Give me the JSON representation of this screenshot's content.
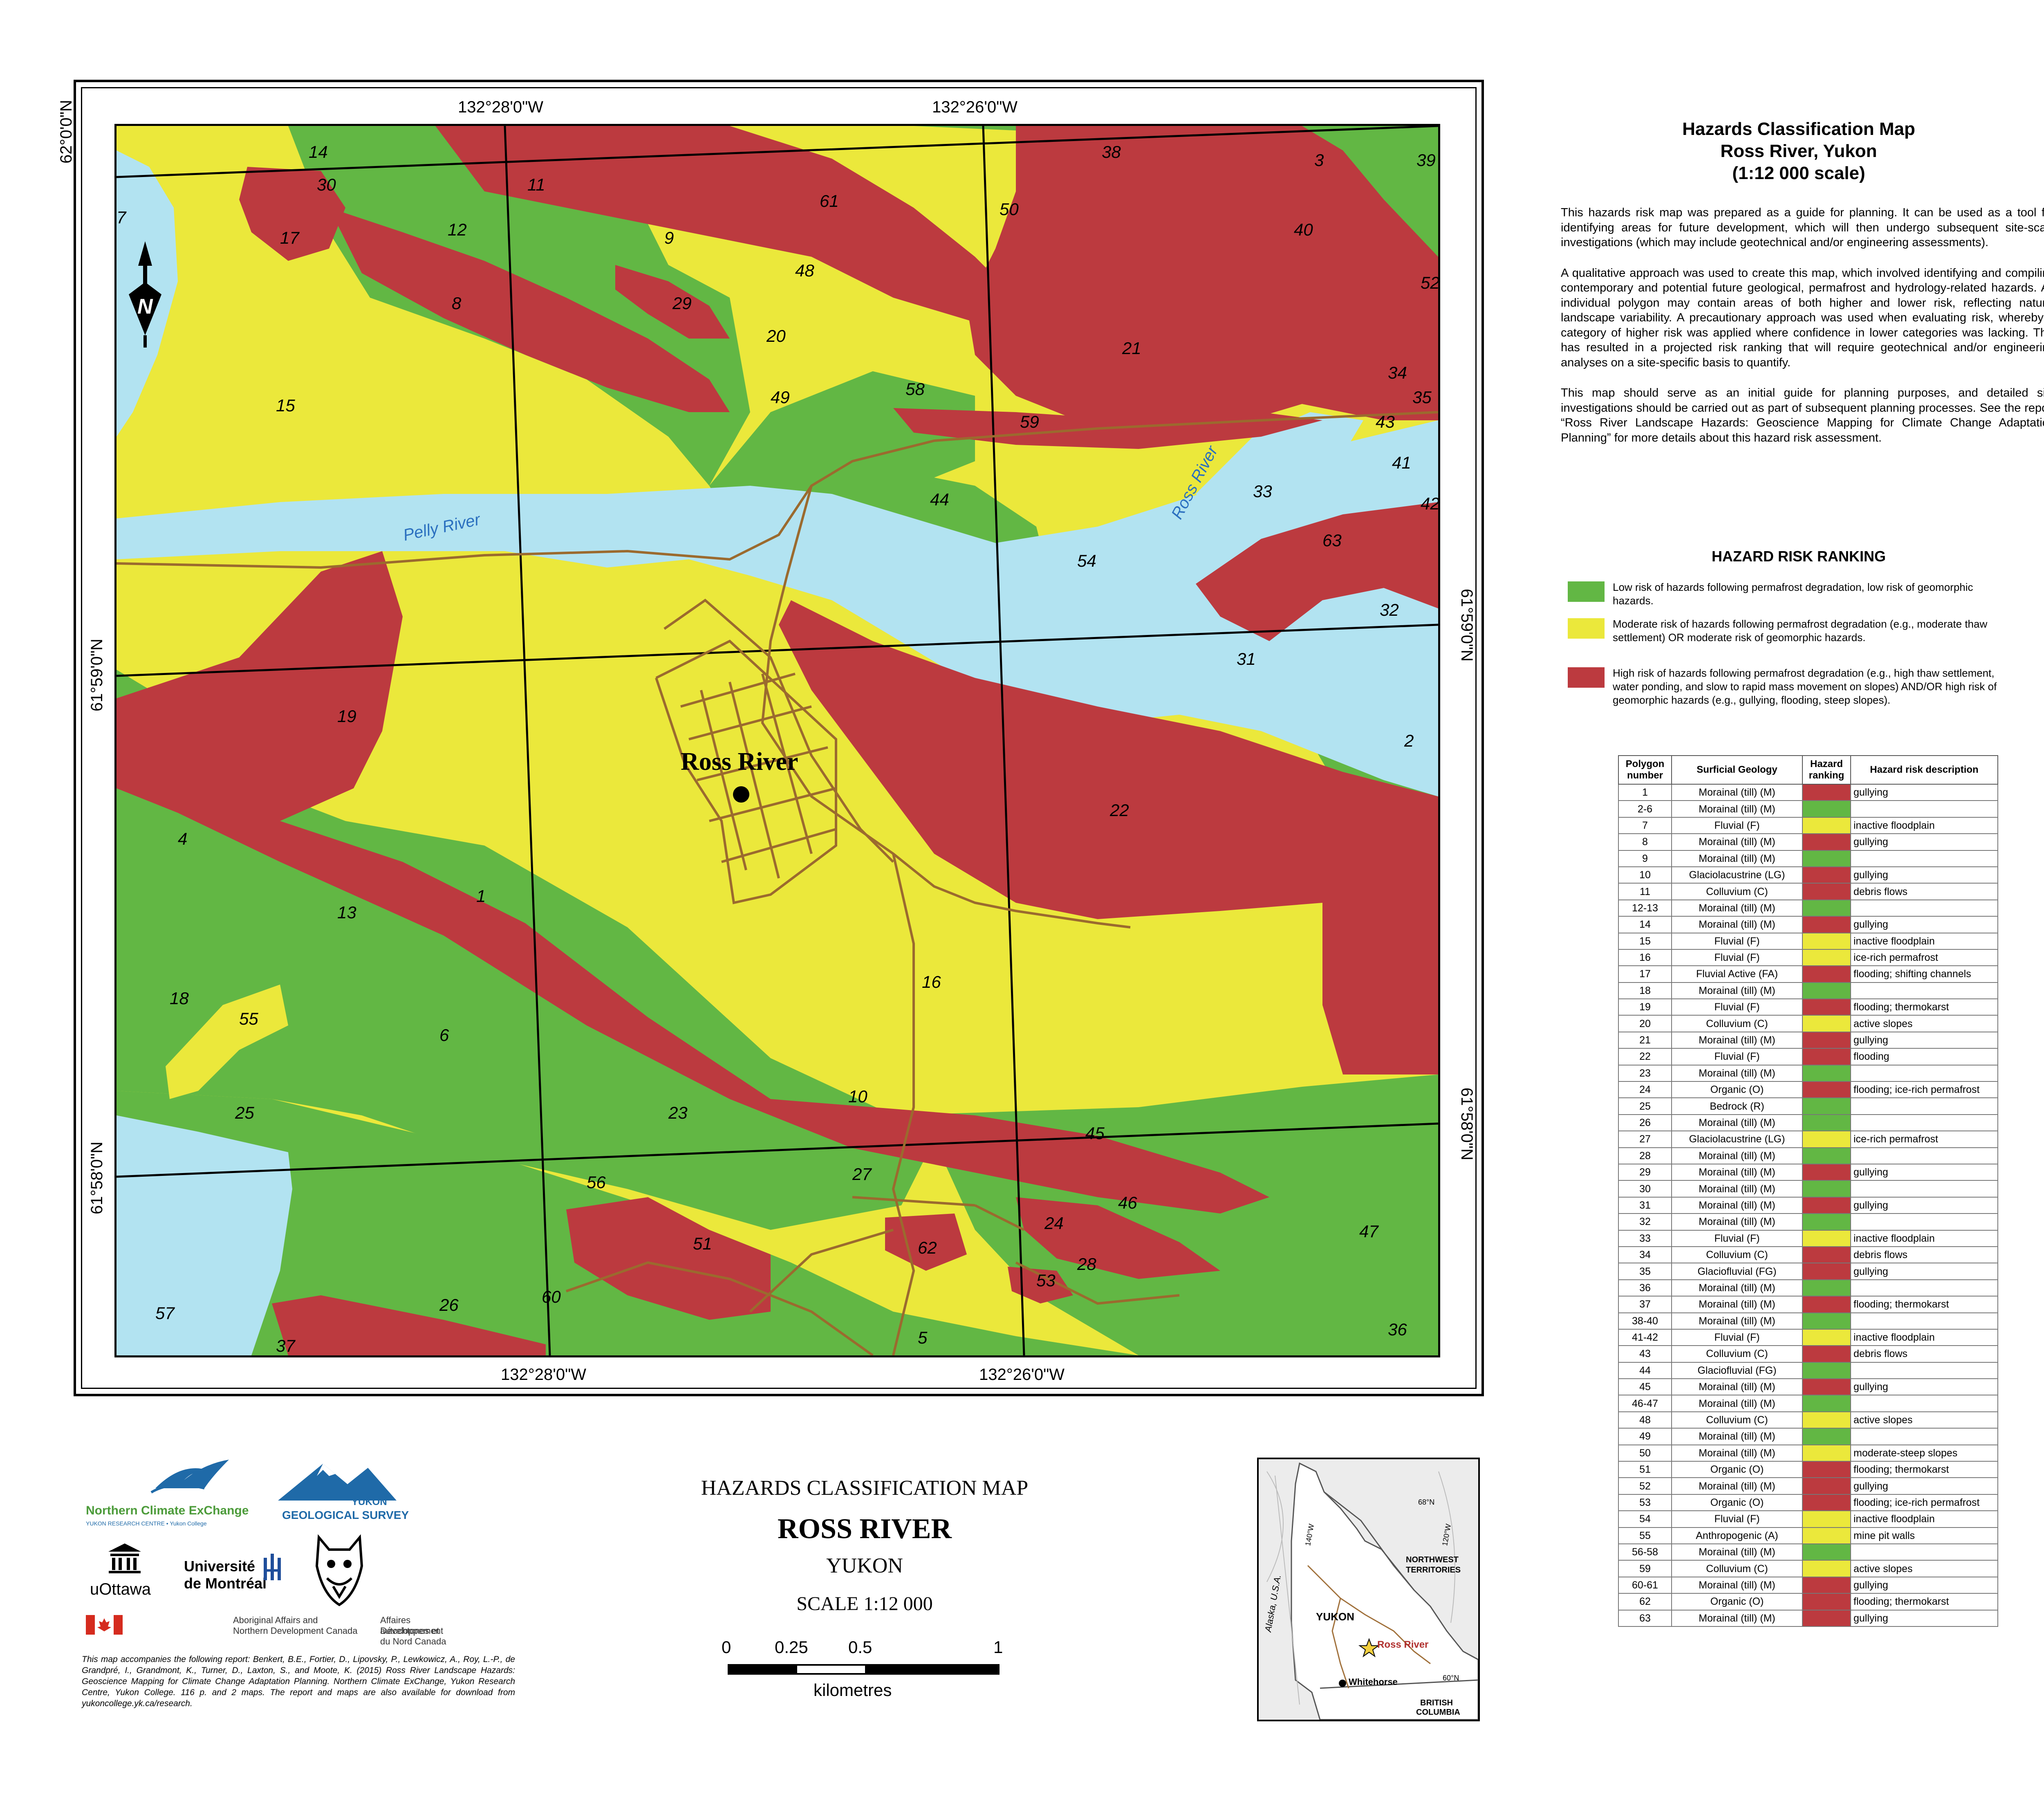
{
  "map": {
    "coords_top": [
      "132°28'0\"W",
      "132°26'0\"W"
    ],
    "coords_bottom": [
      "132°28'0\"W",
      "132°26'0\"W"
    ],
    "coords_left": [
      "62°0'0\"N",
      "61°59'0\"N",
      "61°58'0\"N"
    ],
    "coords_right": [
      "61°59'0\"N",
      "61°58'0\"N"
    ],
    "town_label": "Ross River",
    "rivers": [
      "Pelly River",
      "Ross River"
    ],
    "north_letter": "N",
    "polygon_labels": [
      "14",
      "30",
      "11",
      "38",
      "3",
      "39",
      "7",
      "17",
      "12",
      "9",
      "61",
      "50",
      "40",
      "8",
      "29",
      "48",
      "52",
      "20",
      "21",
      "34",
      "15",
      "49",
      "58",
      "35",
      "59",
      "43",
      "41",
      "33",
      "44",
      "42",
      "63",
      "54",
      "32",
      "31",
      "19",
      "2",
      "22",
      "4",
      "1",
      "13",
      "16",
      "18",
      "55",
      "6",
      "10",
      "25",
      "23",
      "45",
      "56",
      "27",
      "46",
      "51",
      "62",
      "24",
      "47",
      "28",
      "53",
      "60",
      "26",
      "57",
      "37",
      "5",
      "36"
    ],
    "colors": {
      "low": "#62b744",
      "moderate": "#ebe83b",
      "high": "#bc3a3f",
      "water": "#b2e3f1",
      "road": "#9b6a2e"
    }
  },
  "panel": {
    "title_line1": "Hazards Classification Map",
    "title_line2": "Ross River, Yukon",
    "title_line3": "(1:12 000 scale)",
    "para1": "This hazards risk map was prepared as a guide for planning. It can be  used as a tool for identifying areas for future development, which will then undergo subsequent site-scale investigations (which may include geotechnical and/or engineering assessments).",
    "para2": "A qualitative approach was used to create this map, which involved identifying and compiling contemporary and potential future geological, permafrost and hydrology-related hazards. An individual polygon may contain areas of both higher and lower risk, reflecting natural landscape variability. A precautionary approach was used when evaluating risk, whereby a category of higher risk was applied where confidence in lower categories was lacking. This has resulted in a projected risk ranking that will require geotechnical and/or engineering analyses on a site-specific basis to quantify.",
    "para3": "This map should serve as an initial guide for planning purposes, and detailed site investigations should be carried out as part of subsequent planning processes. See the report “Ross River Landscape Hazards: Geoscience Mapping for Climate Change Adaptation Planning” for more details about this hazard risk assessment.",
    "ranking_title": "HAZARD RISK RANKING",
    "legend_low": "Low risk of hazards following permafrost degradation, low risk of geomorphic hazards.",
    "legend_moderate": "Moderate risk of hazards following permafrost degradation (e.g., moderate thaw settlement) OR moderate risk of geomorphic hazards.",
    "legend_high": "High risk of hazards following permafrost degradation (e.g., high thaw settlement, water ponding, and slow to rapid mass movement on slopes) AND/OR high risk of geomorphic hazards (e.g., gullying, flooding, steep slopes)."
  },
  "table": {
    "headers": [
      "Polygon number",
      "Surficial Geology",
      "Hazard ranking",
      "Hazard risk description"
    ],
    "rows": [
      {
        "n": "1",
        "g": "Morainal (till) (M)",
        "r": "high",
        "d": "gullying"
      },
      {
        "n": "2-6",
        "g": "Morainal (till) (M)",
        "r": "low",
        "d": ""
      },
      {
        "n": "7",
        "g": "Fluvial (F)",
        "r": "moderate",
        "d": "inactive floodplain"
      },
      {
        "n": "8",
        "g": "Morainal (till) (M)",
        "r": "high",
        "d": "gullying"
      },
      {
        "n": "9",
        "g": "Morainal (till) (M)",
        "r": "low",
        "d": ""
      },
      {
        "n": "10",
        "g": "Glaciolacustrine (LG)",
        "r": "high",
        "d": "gullying"
      },
      {
        "n": "11",
        "g": "Colluvium (C)",
        "r": "high",
        "d": "debris flows"
      },
      {
        "n": "12-13",
        "g": "Morainal (till) (M)",
        "r": "low",
        "d": ""
      },
      {
        "n": "14",
        "g": "Morainal (till) (M)",
        "r": "high",
        "d": "gullying"
      },
      {
        "n": "15",
        "g": "Fluvial (F)",
        "r": "moderate",
        "d": "inactive floodplain"
      },
      {
        "n": "16",
        "g": "Fluvial (F)",
        "r": "moderate",
        "d": "ice-rich permafrost"
      },
      {
        "n": "17",
        "g": "Fluvial Active (FA)",
        "r": "high",
        "d": "flooding; shifting channels"
      },
      {
        "n": "18",
        "g": "Morainal (till) (M)",
        "r": "low",
        "d": ""
      },
      {
        "n": "19",
        "g": "Fluvial (F)",
        "r": "high",
        "d": "flooding; thermokarst"
      },
      {
        "n": "20",
        "g": "Colluvium (C)",
        "r": "moderate",
        "d": "active slopes"
      },
      {
        "n": "21",
        "g": "Morainal (till) (M)",
        "r": "high",
        "d": "gullying"
      },
      {
        "n": "22",
        "g": "Fluvial (F)",
        "r": "high",
        "d": "flooding"
      },
      {
        "n": "23",
        "g": "Morainal (till) (M)",
        "r": "low",
        "d": ""
      },
      {
        "n": "24",
        "g": "Organic (O)",
        "r": "high",
        "d": "flooding; ice-rich permafrost"
      },
      {
        "n": "25",
        "g": "Bedrock (R)",
        "r": "low",
        "d": ""
      },
      {
        "n": "26",
        "g": "Morainal (till) (M)",
        "r": "low",
        "d": ""
      },
      {
        "n": "27",
        "g": "Glaciolacustrine (LG)",
        "r": "moderate",
        "d": "ice-rich permafrost"
      },
      {
        "n": "28",
        "g": "Morainal (till) (M)",
        "r": "low",
        "d": ""
      },
      {
        "n": "29",
        "g": "Morainal (till) (M)",
        "r": "high",
        "d": "gullying"
      },
      {
        "n": "30",
        "g": "Morainal (till) (M)",
        "r": "low",
        "d": ""
      },
      {
        "n": "31",
        "g": "Morainal (till) (M)",
        "r": "high",
        "d": "gullying"
      },
      {
        "n": "32",
        "g": "Morainal (till) (M)",
        "r": "low",
        "d": ""
      },
      {
        "n": "33",
        "g": "Fluvial (F)",
        "r": "moderate",
        "d": "inactive floodplain"
      },
      {
        "n": "34",
        "g": "Colluvium (C)",
        "r": "high",
        "d": "debris flows"
      },
      {
        "n": "35",
        "g": "Glaciofluvial (FG)",
        "r": "high",
        "d": "gullying"
      },
      {
        "n": "36",
        "g": "Morainal (till) (M)",
        "r": "low",
        "d": ""
      },
      {
        "n": "37",
        "g": "Morainal (till) (M)",
        "r": "high",
        "d": "flooding; thermokarst"
      },
      {
        "n": "38-40",
        "g": "Morainal (till) (M)",
        "r": "low",
        "d": ""
      },
      {
        "n": "41-42",
        "g": "Fluvial (F)",
        "r": "moderate",
        "d": "inactive floodplain"
      },
      {
        "n": "43",
        "g": "Colluvium (C)",
        "r": "high",
        "d": "debris flows"
      },
      {
        "n": "44",
        "g": "Glaciofluvial (FG)",
        "r": "low",
        "d": ""
      },
      {
        "n": "45",
        "g": "Morainal (till) (M)",
        "r": "high",
        "d": "gullying"
      },
      {
        "n": "46-47",
        "g": "Morainal (till) (M)",
        "r": "low",
        "d": ""
      },
      {
        "n": "48",
        "g": "Colluvium (C)",
        "r": "moderate",
        "d": "active slopes"
      },
      {
        "n": "49",
        "g": "Morainal (till) (M)",
        "r": "low",
        "d": ""
      },
      {
        "n": "50",
        "g": "Morainal (till) (M)",
        "r": "moderate",
        "d": "moderate-steep slopes"
      },
      {
        "n": "51",
        "g": "Organic (O)",
        "r": "high",
        "d": "flooding; thermokarst"
      },
      {
        "n": "52",
        "g": "Morainal (till) (M)",
        "r": "high",
        "d": "gullying"
      },
      {
        "n": "53",
        "g": "Organic (O)",
        "r": "high",
        "d": "flooding; ice-rich permafrost"
      },
      {
        "n": "54",
        "g": "Fluvial (F)",
        "r": "moderate",
        "d": "inactive floodplain"
      },
      {
        "n": "55",
        "g": "Anthropogenic (A)",
        "r": "moderate",
        "d": "mine pit walls"
      },
      {
        "n": "56-58",
        "g": "Morainal (till) (M)",
        "r": "low",
        "d": ""
      },
      {
        "n": "59",
        "g": "Colluvium (C)",
        "r": "moderate",
        "d": "active slopes"
      },
      {
        "n": "60-61",
        "g": "Morainal (till) (M)",
        "r": "high",
        "d": "gullying"
      },
      {
        "n": "62",
        "g": "Organic (O)",
        "r": "high",
        "d": "flooding; thermokarst"
      },
      {
        "n": "63",
        "g": "Morainal (till) (M)",
        "r": "high",
        "d": "gullying"
      }
    ]
  },
  "center": {
    "line1": "HAZARDS CLASSIFICATION MAP",
    "line2": "ROSS RIVER",
    "line3": "YUKON",
    "line4": "SCALE 1:12 000",
    "scale_ticks": [
      "0",
      "0.25",
      "0.5",
      "1"
    ],
    "scale_unit": "kilometres"
  },
  "logos": {
    "nce_name": "Northern Climate ExChange",
    "nce_sub": "YUKON RESEARCH CENTRE • Yukon College",
    "ygs_line1": "YUKON",
    "ygs_line2": "GEOLOGICAL SURVEY",
    "uottawa": "uOttawa",
    "udem_line1": "Université",
    "udem_line2": "de Montréal",
    "aandc_en_1": "Aboriginal Affairs and",
    "aandc_en_2": "Northern Development Canada",
    "aandc_fr_1": "Affaires autochtones et",
    "aandc_fr_2": "Développement du Nord Canada"
  },
  "note": "This map accompanies the following report: Benkert, B.E., Fortier, D., Lipovsky, P., Lewkowicz, A., Roy, L.-P., de Grandpré, I., Grandmont, K., Turner, D., Laxton, S., and Moote, K. (2015) Ross River Landscape Hazards: Geoscience Mapping for Climate Change Adaptation Planning. Northern Climate ExChange, Yukon Research Centre, Yukon College. 116 p. and 2 maps. The report and maps are also available for download from yukoncollege.yk.ca/research.",
  "inset": {
    "yukon": "YUKON",
    "nwt_1": "NORTHWEST",
    "nwt_2": "TERRITORIES",
    "bc_1": "BRITISH",
    "bc_2": "COLUMBIA",
    "alaska": "Alaska, U.S.A.",
    "ross_river": "Ross River",
    "whitehorse": "Whitehorse",
    "lat68": "68°N",
    "lat60": "60°N",
    "lon140": "140°W",
    "lon120": "120°W"
  }
}
